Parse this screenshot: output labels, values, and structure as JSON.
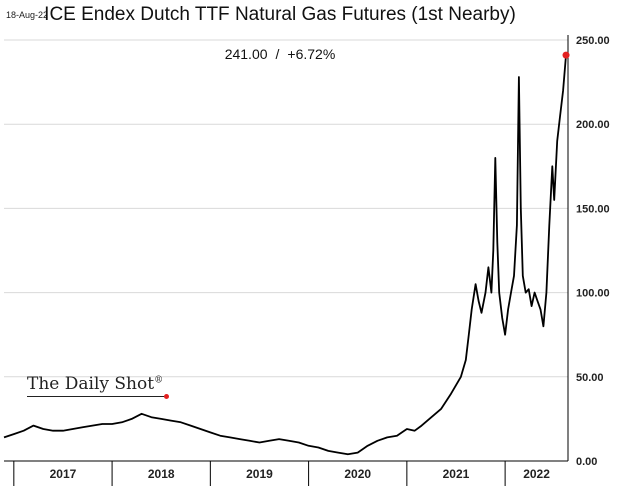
{
  "header": {
    "date": "18-Aug-22",
    "title": "ICE Endex Dutch TTF Natural Gas Futures (1st Nearby)",
    "last_value": "241.00",
    "separator": "/",
    "change": "+6.72%"
  },
  "branding": {
    "name": "The Daily Shot",
    "mark": "®"
  },
  "chart_data": {
    "type": "line",
    "title": "ICE Endex Dutch TTF Natural Gas Futures (1st Nearby)",
    "xlabel": "",
    "ylabel": "",
    "ylim": [
      0,
      250
    ],
    "xlim": [
      2016.9,
      2022.64
    ],
    "y_ticks": [
      "0.00",
      "50.00",
      "100.00",
      "150.00",
      "200.00",
      "250.00"
    ],
    "x_ticks": [
      "2017",
      "2018",
      "2019",
      "2020",
      "2021",
      "2022"
    ],
    "grid": true,
    "line_color": "#000000",
    "endpoint_color": "#e32020",
    "series": [
      {
        "values": [
          [
            2016.9,
            14
          ],
          [
            2017.0,
            16
          ],
          [
            2017.1,
            18
          ],
          [
            2017.2,
            21
          ],
          [
            2017.3,
            19
          ],
          [
            2017.4,
            18
          ],
          [
            2017.5,
            18
          ],
          [
            2017.6,
            19
          ],
          [
            2017.7,
            20
          ],
          [
            2017.8,
            21
          ],
          [
            2017.9,
            22
          ],
          [
            2018.0,
            22
          ],
          [
            2018.1,
            23
          ],
          [
            2018.2,
            25
          ],
          [
            2018.3,
            28
          ],
          [
            2018.4,
            26
          ],
          [
            2018.5,
            25
          ],
          [
            2018.6,
            24
          ],
          [
            2018.7,
            23
          ],
          [
            2018.8,
            21
          ],
          [
            2018.9,
            19
          ],
          [
            2019.0,
            17
          ],
          [
            2019.1,
            15
          ],
          [
            2019.2,
            14
          ],
          [
            2019.3,
            13
          ],
          [
            2019.4,
            12
          ],
          [
            2019.5,
            11
          ],
          [
            2019.6,
            12
          ],
          [
            2019.7,
            13
          ],
          [
            2019.8,
            12
          ],
          [
            2019.9,
            11
          ],
          [
            2020.0,
            9
          ],
          [
            2020.1,
            8
          ],
          [
            2020.2,
            6
          ],
          [
            2020.3,
            5
          ],
          [
            2020.4,
            4
          ],
          [
            2020.5,
            5
          ],
          [
            2020.55,
            7
          ],
          [
            2020.6,
            9
          ],
          [
            2020.7,
            12
          ],
          [
            2020.8,
            14
          ],
          [
            2020.9,
            15
          ],
          [
            2020.95,
            17
          ],
          [
            2021.0,
            19
          ],
          [
            2021.08,
            18
          ],
          [
            2021.15,
            21
          ],
          [
            2021.25,
            26
          ],
          [
            2021.35,
            31
          ],
          [
            2021.45,
            40
          ],
          [
            2021.55,
            50
          ],
          [
            2021.6,
            60
          ],
          [
            2021.63,
            75
          ],
          [
            2021.66,
            90
          ],
          [
            2021.7,
            105
          ],
          [
            2021.73,
            95
          ],
          [
            2021.76,
            88
          ],
          [
            2021.8,
            100
          ],
          [
            2021.83,
            115
          ],
          [
            2021.86,
            100
          ],
          [
            2021.88,
            125
          ],
          [
            2021.9,
            180
          ],
          [
            2021.92,
            130
          ],
          [
            2021.94,
            100
          ],
          [
            2021.97,
            85
          ],
          [
            2022.0,
            75
          ],
          [
            2022.03,
            90
          ],
          [
            2022.06,
            100
          ],
          [
            2022.09,
            110
          ],
          [
            2022.12,
            140
          ],
          [
            2022.14,
            228
          ],
          [
            2022.16,
            150
          ],
          [
            2022.18,
            110
          ],
          [
            2022.21,
            100
          ],
          [
            2022.24,
            102
          ],
          [
            2022.27,
            92
          ],
          [
            2022.3,
            100
          ],
          [
            2022.33,
            95
          ],
          [
            2022.36,
            90
          ],
          [
            2022.39,
            80
          ],
          [
            2022.42,
            100
          ],
          [
            2022.45,
            140
          ],
          [
            2022.48,
            175
          ],
          [
            2022.5,
            155
          ],
          [
            2022.53,
            190
          ],
          [
            2022.56,
            205
          ],
          [
            2022.59,
            220
          ],
          [
            2022.62,
            241
          ]
        ]
      }
    ]
  }
}
